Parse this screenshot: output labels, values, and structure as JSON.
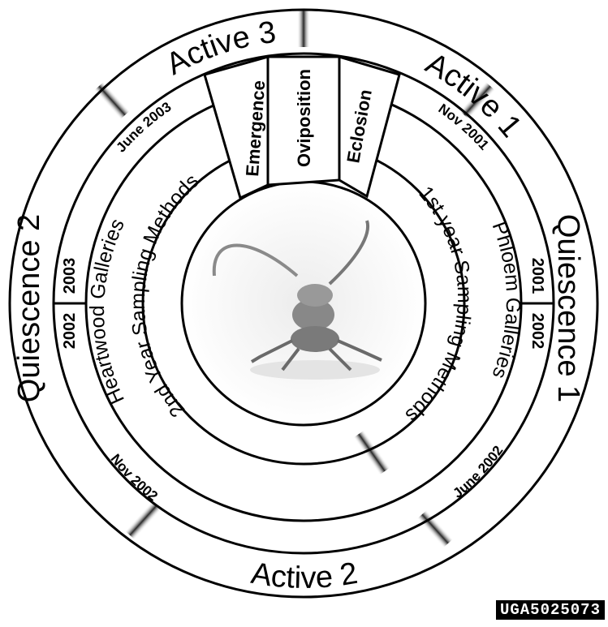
{
  "outer_ring": {
    "active_1": "Active 1",
    "active_2": "Active 2",
    "active_3": "Active 3",
    "quiescence_1": "Quiescence 1",
    "quiescence_2": "Quiescence 2"
  },
  "dates": {
    "nov_2001": "Nov 2001",
    "june_2002": "June 2002",
    "nov_2002": "Nov 2002",
    "june_2003": "June 2003"
  },
  "years": {
    "right_top": "2001",
    "right_bottom": "2002",
    "left_bottom": "2002",
    "left_top": "2003"
  },
  "galleries": {
    "phloem": "Phloem Galleries",
    "heartwood": "Heartwood Galleries"
  },
  "sampling": {
    "first_year": "1st year Sampling Methods",
    "second_year": "2nd Year Sampling Methods"
  },
  "segments": {
    "emergence": "Emergence",
    "oviposition": "Oviposition",
    "eclosion": "Eclosion"
  },
  "watermark": "UGA5025073"
}
